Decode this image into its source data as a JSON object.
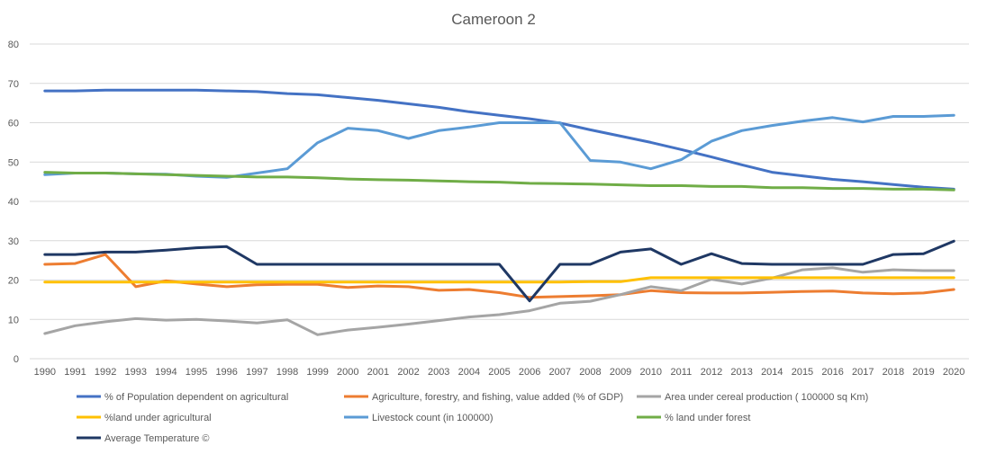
{
  "chart_data": {
    "type": "line",
    "title": "Cameroon 2",
    "xlabel": "",
    "ylabel": "",
    "ylim": [
      0,
      80
    ],
    "yticks": [
      0,
      10,
      20,
      30,
      40,
      50,
      60,
      70,
      80
    ],
    "grid": true,
    "legend_position": "bottom",
    "categories": [
      "1990",
      "1991",
      "1992",
      "1993",
      "1994",
      "1995",
      "1996",
      "1997",
      "1998",
      "1999",
      "2000",
      "2001",
      "2002",
      "2003",
      "2004",
      "2005",
      "2006",
      "2007",
      "2008",
      "2009",
      "2010",
      "2011",
      "2012",
      "2013",
      "2014",
      "2015",
      "2016",
      "2017",
      "2018",
      "2019",
      "2020"
    ],
    "series": [
      {
        "name": "% of Population dependent on agricultural",
        "color": "#4472c4",
        "values": [
          68.1,
          68.1,
          68.3,
          68.3,
          68.3,
          68.3,
          68.1,
          67.9,
          67.4,
          67.1,
          66.4,
          65.7,
          64.8,
          63.9,
          62.8,
          61.9,
          61.0,
          59.9,
          58.2,
          56.6,
          55.0,
          53.2,
          51.3,
          49.3,
          47.4,
          46.5,
          45.6,
          45.0,
          44.3,
          43.6,
          43.1
        ]
      },
      {
        "name": "Agriculture, forestry, and fishing, value added (% of GDP)",
        "color": "#ed7d31",
        "values": [
          24.0,
          24.2,
          26.5,
          18.3,
          19.8,
          19.0,
          18.3,
          18.8,
          18.9,
          18.9,
          18.1,
          18.5,
          18.3,
          17.4,
          17.6,
          16.8,
          15.6,
          15.8,
          16.0,
          16.3,
          17.3,
          16.8,
          16.7,
          16.7,
          16.9,
          17.1,
          17.2,
          16.7,
          16.5,
          16.7,
          17.6
        ]
      },
      {
        "name": "Area under cereal production ( 100000 sq Km)",
        "color": "#a5a5a5",
        "values": [
          6.4,
          8.4,
          9.4,
          10.2,
          9.8,
          10.0,
          9.6,
          9.1,
          9.9,
          6.1,
          7.3,
          8.0,
          8.8,
          9.7,
          10.6,
          11.2,
          12.2,
          14.1,
          14.6,
          16.3,
          18.3,
          17.3,
          20.2,
          19.0,
          20.5,
          22.6,
          23.1,
          22.0,
          22.6,
          22.4,
          22.4
        ]
      },
      {
        "name": "%land under agricultural",
        "color": "#ffc000",
        "values": [
          19.5,
          19.5,
          19.5,
          19.5,
          19.5,
          19.5,
          19.5,
          19.5,
          19.5,
          19.5,
          19.5,
          19.5,
          19.5,
          19.5,
          19.5,
          19.5,
          19.5,
          19.5,
          19.6,
          19.6,
          20.6,
          20.6,
          20.6,
          20.6,
          20.6,
          20.6,
          20.6,
          20.6,
          20.6,
          20.6,
          20.6
        ]
      },
      {
        "name": "Livestock count (in 100000)",
        "color": "#5b9bd5",
        "values": [
          46.8,
          47.2,
          47.2,
          47.0,
          46.9,
          46.4,
          46.1,
          47.2,
          48.3,
          54.9,
          58.6,
          58.0,
          56.0,
          58.0,
          58.9,
          60.0,
          60.0,
          60.0,
          50.4,
          50.0,
          48.3,
          50.6,
          55.3,
          58.0,
          59.3,
          60.4,
          61.3,
          60.2,
          61.6,
          61.6,
          61.9
        ]
      },
      {
        "name": "% land under forest",
        "color": "#70ad47",
        "values": [
          47.4,
          47.2,
          47.2,
          47.0,
          46.8,
          46.6,
          46.4,
          46.2,
          46.2,
          46.0,
          45.7,
          45.5,
          45.4,
          45.2,
          45.0,
          44.9,
          44.6,
          44.5,
          44.4,
          44.2,
          44.0,
          44.0,
          43.8,
          43.8,
          43.5,
          43.5,
          43.3,
          43.3,
          43.1,
          43.1,
          42.9
        ]
      },
      {
        "name": "Average Temperature ©",
        "color": "#1f3864",
        "values": [
          26.5,
          26.5,
          27.1,
          27.1,
          27.6,
          28.2,
          28.5,
          24.0,
          24.0,
          24.0,
          24.0,
          24.0,
          24.0,
          24.0,
          24.0,
          24.0,
          14.7,
          24.0,
          24.0,
          27.1,
          27.9,
          24.0,
          26.7,
          24.2,
          24.0,
          24.0,
          24.0,
          24.0,
          26.5,
          26.7,
          29.9
        ]
      }
    ]
  }
}
